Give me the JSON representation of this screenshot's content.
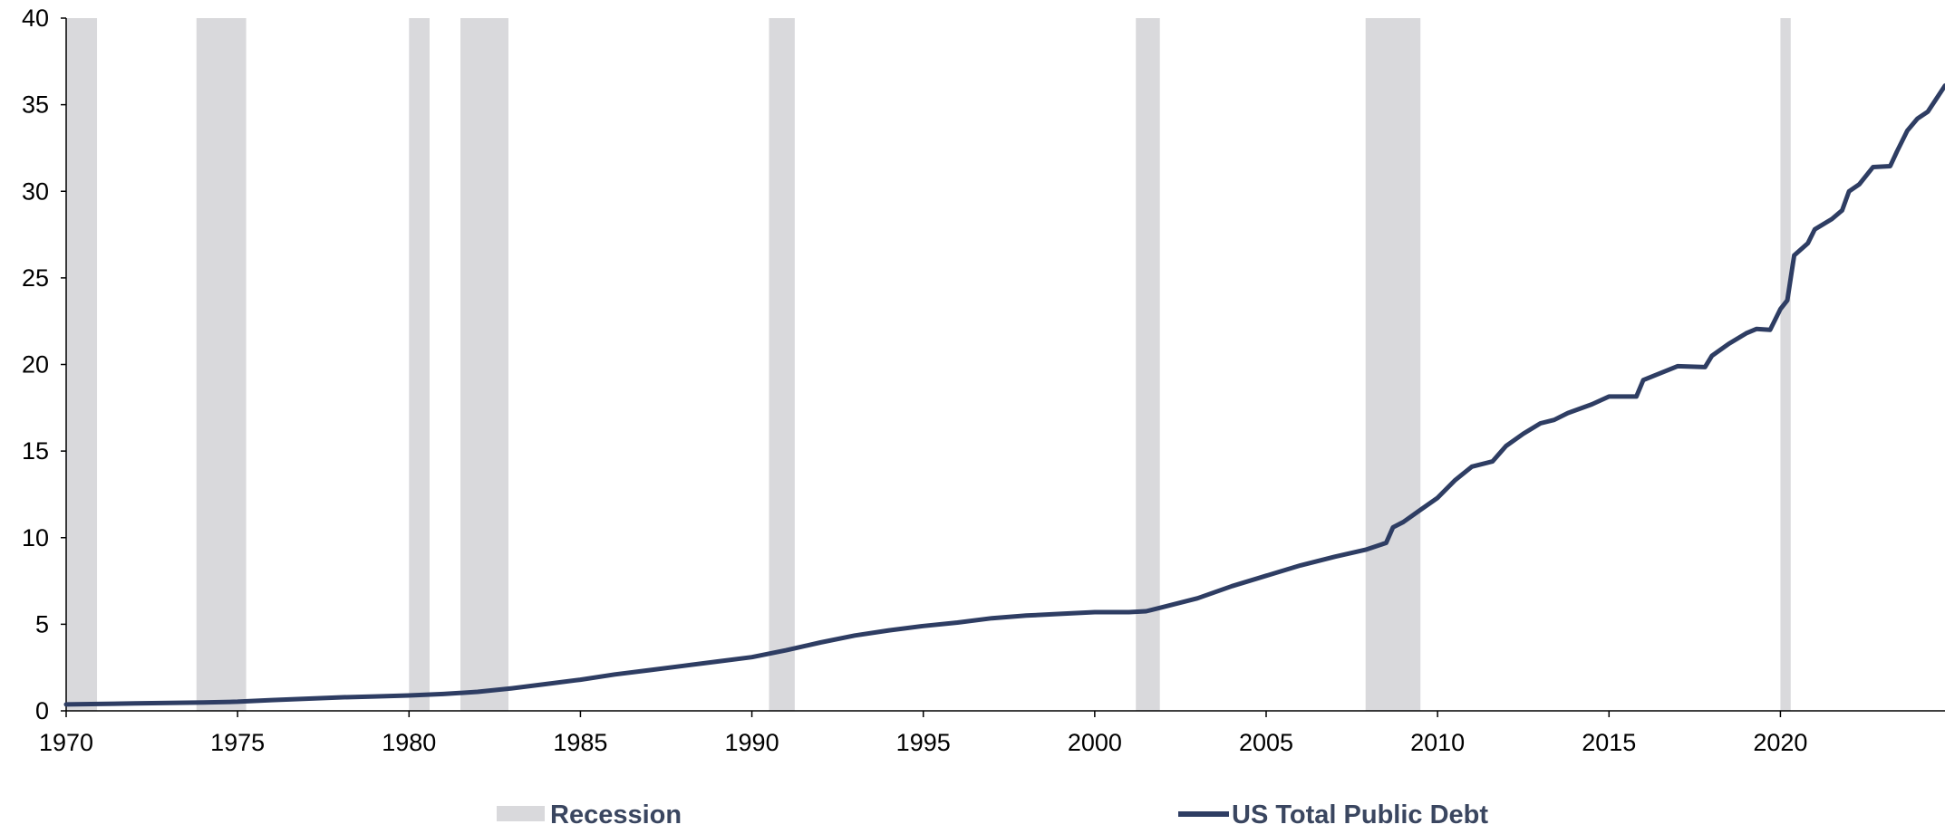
{
  "chart_data": {
    "type": "line",
    "title": "",
    "xlabel": "",
    "ylabel": "",
    "xlim": [
      1970,
      2024.8
    ],
    "ylim": [
      0,
      40
    ],
    "x_ticks": [
      "1970",
      "1975",
      "1980",
      "1985",
      "1990",
      "1995",
      "2000",
      "2005",
      "2010",
      "2015",
      "2020"
    ],
    "y_ticks": [
      "0",
      "5",
      "10",
      "15",
      "20",
      "25",
      "30",
      "35",
      "40"
    ],
    "grid": false,
    "legend_position": "bottom",
    "recessions": {
      "name": "Recession",
      "color": "#d9d9dc",
      "periods": [
        [
          1970.0,
          1970.9
        ],
        [
          1973.8,
          1975.25
        ],
        [
          1980.0,
          1980.6
        ],
        [
          1981.5,
          1982.9
        ],
        [
          1990.5,
          1991.25
        ],
        [
          2001.2,
          2001.9
        ],
        [
          2007.9,
          2009.5
        ],
        [
          2020.0,
          2020.3
        ]
      ]
    },
    "series": [
      {
        "name": "US Total Public Debt",
        "color": "#2e3d63",
        "points": [
          [
            1970.0,
            0.37
          ],
          [
            1972.0,
            0.43
          ],
          [
            1974.0,
            0.48
          ],
          [
            1975.0,
            0.53
          ],
          [
            1976.0,
            0.62
          ],
          [
            1977.0,
            0.7
          ],
          [
            1978.0,
            0.78
          ],
          [
            1979.0,
            0.83
          ],
          [
            1980.0,
            0.89
          ],
          [
            1981.0,
            0.97
          ],
          [
            1982.0,
            1.1
          ],
          [
            1983.0,
            1.3
          ],
          [
            1984.0,
            1.55
          ],
          [
            1985.0,
            1.8
          ],
          [
            1986.0,
            2.1
          ],
          [
            1987.0,
            2.35
          ],
          [
            1988.0,
            2.6
          ],
          [
            1989.0,
            2.85
          ],
          [
            1990.0,
            3.1
          ],
          [
            1991.0,
            3.5
          ],
          [
            1992.0,
            3.95
          ],
          [
            1993.0,
            4.35
          ],
          [
            1994.0,
            4.65
          ],
          [
            1995.0,
            4.9
          ],
          [
            1996.0,
            5.1
          ],
          [
            1997.0,
            5.35
          ],
          [
            1998.0,
            5.5
          ],
          [
            1999.0,
            5.6
          ],
          [
            2000.0,
            5.7
          ],
          [
            2001.0,
            5.7
          ],
          [
            2001.5,
            5.75
          ],
          [
            2002.0,
            6.0
          ],
          [
            2003.0,
            6.5
          ],
          [
            2004.0,
            7.2
          ],
          [
            2005.0,
            7.8
          ],
          [
            2006.0,
            8.4
          ],
          [
            2007.0,
            8.9
          ],
          [
            2007.9,
            9.3
          ],
          [
            2008.5,
            9.7
          ],
          [
            2008.7,
            10.6
          ],
          [
            2009.0,
            10.9
          ],
          [
            2009.5,
            11.6
          ],
          [
            2010.0,
            12.3
          ],
          [
            2010.5,
            13.3
          ],
          [
            2011.0,
            14.1
          ],
          [
            2011.6,
            14.4
          ],
          [
            2012.0,
            15.3
          ],
          [
            2012.5,
            16.0
          ],
          [
            2013.0,
            16.6
          ],
          [
            2013.4,
            16.8
          ],
          [
            2013.8,
            17.2
          ],
          [
            2014.5,
            17.7
          ],
          [
            2015.0,
            18.15
          ],
          [
            2015.8,
            18.15
          ],
          [
            2016.0,
            19.1
          ],
          [
            2016.5,
            19.5
          ],
          [
            2017.0,
            19.9
          ],
          [
            2017.8,
            19.85
          ],
          [
            2018.0,
            20.5
          ],
          [
            2018.5,
            21.2
          ],
          [
            2019.0,
            21.8
          ],
          [
            2019.3,
            22.05
          ],
          [
            2019.7,
            22.0
          ],
          [
            2020.0,
            23.2
          ],
          [
            2020.2,
            23.7
          ],
          [
            2020.4,
            26.3
          ],
          [
            2020.8,
            27.0
          ],
          [
            2021.0,
            27.8
          ],
          [
            2021.5,
            28.4
          ],
          [
            2021.8,
            28.9
          ],
          [
            2022.0,
            30.0
          ],
          [
            2022.3,
            30.4
          ],
          [
            2022.7,
            31.4
          ],
          [
            2023.2,
            31.45
          ],
          [
            2023.4,
            32.3
          ],
          [
            2023.7,
            33.5
          ],
          [
            2024.0,
            34.2
          ],
          [
            2024.3,
            34.6
          ],
          [
            2024.6,
            35.5
          ],
          [
            2024.8,
            36.1
          ]
        ]
      }
    ]
  },
  "legend": {
    "recession_label": "Recession",
    "series_label": "US Total Public Debt"
  }
}
